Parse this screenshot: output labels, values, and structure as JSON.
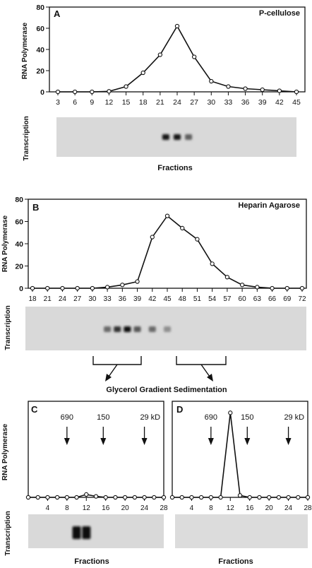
{
  "chart_data": [
    {
      "type": "line",
      "panel_label": "A",
      "title": "P-cellulose",
      "ylabel": "RNA Polymerase",
      "ylim": [
        0,
        80
      ],
      "yticks": [
        0,
        20,
        40,
        60,
        80
      ],
      "x": [
        3,
        6,
        9,
        12,
        15,
        18,
        21,
        24,
        27,
        30,
        33,
        36,
        39,
        42,
        45
      ],
      "xticks": [
        3,
        6,
        9,
        12,
        15,
        18,
        21,
        24,
        27,
        30,
        33,
        36,
        39,
        42,
        45
      ],
      "values": [
        0,
        0,
        0,
        0.5,
        5,
        18,
        35,
        62,
        33,
        10,
        5,
        3,
        2,
        1,
        0
      ],
      "gel_label": "Transcription",
      "gel_bands": [
        22,
        24,
        26
      ],
      "gel_intensity": [
        0.95,
        0.95,
        0.55
      ],
      "xlabel": "Fractions",
      "grid": false
    },
    {
      "type": "line",
      "panel_label": "B",
      "title": "Heparin Agarose",
      "ylabel": "RNA Polymerase",
      "ylim": [
        0,
        80
      ],
      "yticks": [
        0,
        20,
        40,
        60,
        80
      ],
      "x": [
        18,
        21,
        24,
        27,
        30,
        33,
        36,
        39,
        42,
        45,
        48,
        51,
        54,
        57,
        60,
        63,
        66,
        69,
        72
      ],
      "xticks": [
        18,
        21,
        24,
        27,
        30,
        33,
        36,
        39,
        42,
        45,
        48,
        51,
        54,
        57,
        60,
        63,
        66,
        69,
        72
      ],
      "values": [
        0,
        0,
        0,
        0,
        0,
        1,
        3,
        6,
        46,
        65,
        54,
        44,
        22,
        10,
        3,
        1,
        0,
        0,
        0
      ],
      "gel_label": "Transcription",
      "gel_bands": [
        33,
        35,
        37,
        39,
        42,
        45
      ],
      "gel_intensity": [
        0.5,
        0.8,
        1.0,
        0.6,
        0.5,
        0.3
      ],
      "grid": false
    },
    {
      "type": "line",
      "panel_label": "C",
      "ylabel": "RNA Polymerase",
      "x": [
        0,
        2,
        4,
        6,
        8,
        10,
        12,
        14,
        16,
        18,
        20,
        22,
        24,
        26,
        28
      ],
      "xticks": [
        4,
        8,
        12,
        16,
        20,
        24,
        28
      ],
      "values": [
        0,
        0,
        0,
        0,
        0,
        0,
        3,
        1,
        0,
        0,
        0,
        0,
        0,
        0,
        0
      ],
      "ylim": [
        0,
        100
      ],
      "markers": [
        {
          "label": "690",
          "x": 8
        },
        {
          "label": "150",
          "x": 15.5
        },
        {
          "label": "29",
          "unit": "kD",
          "x": 24
        }
      ],
      "gel_label": "Transcription",
      "gel_bands": [
        10,
        12
      ],
      "gel_intensity": [
        1.0,
        1.0
      ],
      "xlabel": "Fractions",
      "grid": false
    },
    {
      "type": "line",
      "panel_label": "D",
      "x": [
        0,
        2,
        4,
        6,
        8,
        10,
        12,
        14,
        16,
        18,
        20,
        22,
        24,
        26,
        28
      ],
      "xticks": [
        4,
        8,
        12,
        16,
        20,
        24,
        28
      ],
      "values": [
        0,
        0,
        0,
        0,
        0,
        0,
        88,
        2,
        0,
        0,
        0,
        0,
        0,
        0,
        0
      ],
      "ylim": [
        0,
        100
      ],
      "markers": [
        {
          "label": "690",
          "x": 8
        },
        {
          "label": "150",
          "x": 15.5
        },
        {
          "label": "29",
          "unit": "kD",
          "x": 24
        }
      ],
      "gel_bands": [],
      "gel_intensity": [],
      "xlabel": "Fractions",
      "grid": false
    }
  ],
  "flow_label": "Glycerol Gradient Sedimentation"
}
